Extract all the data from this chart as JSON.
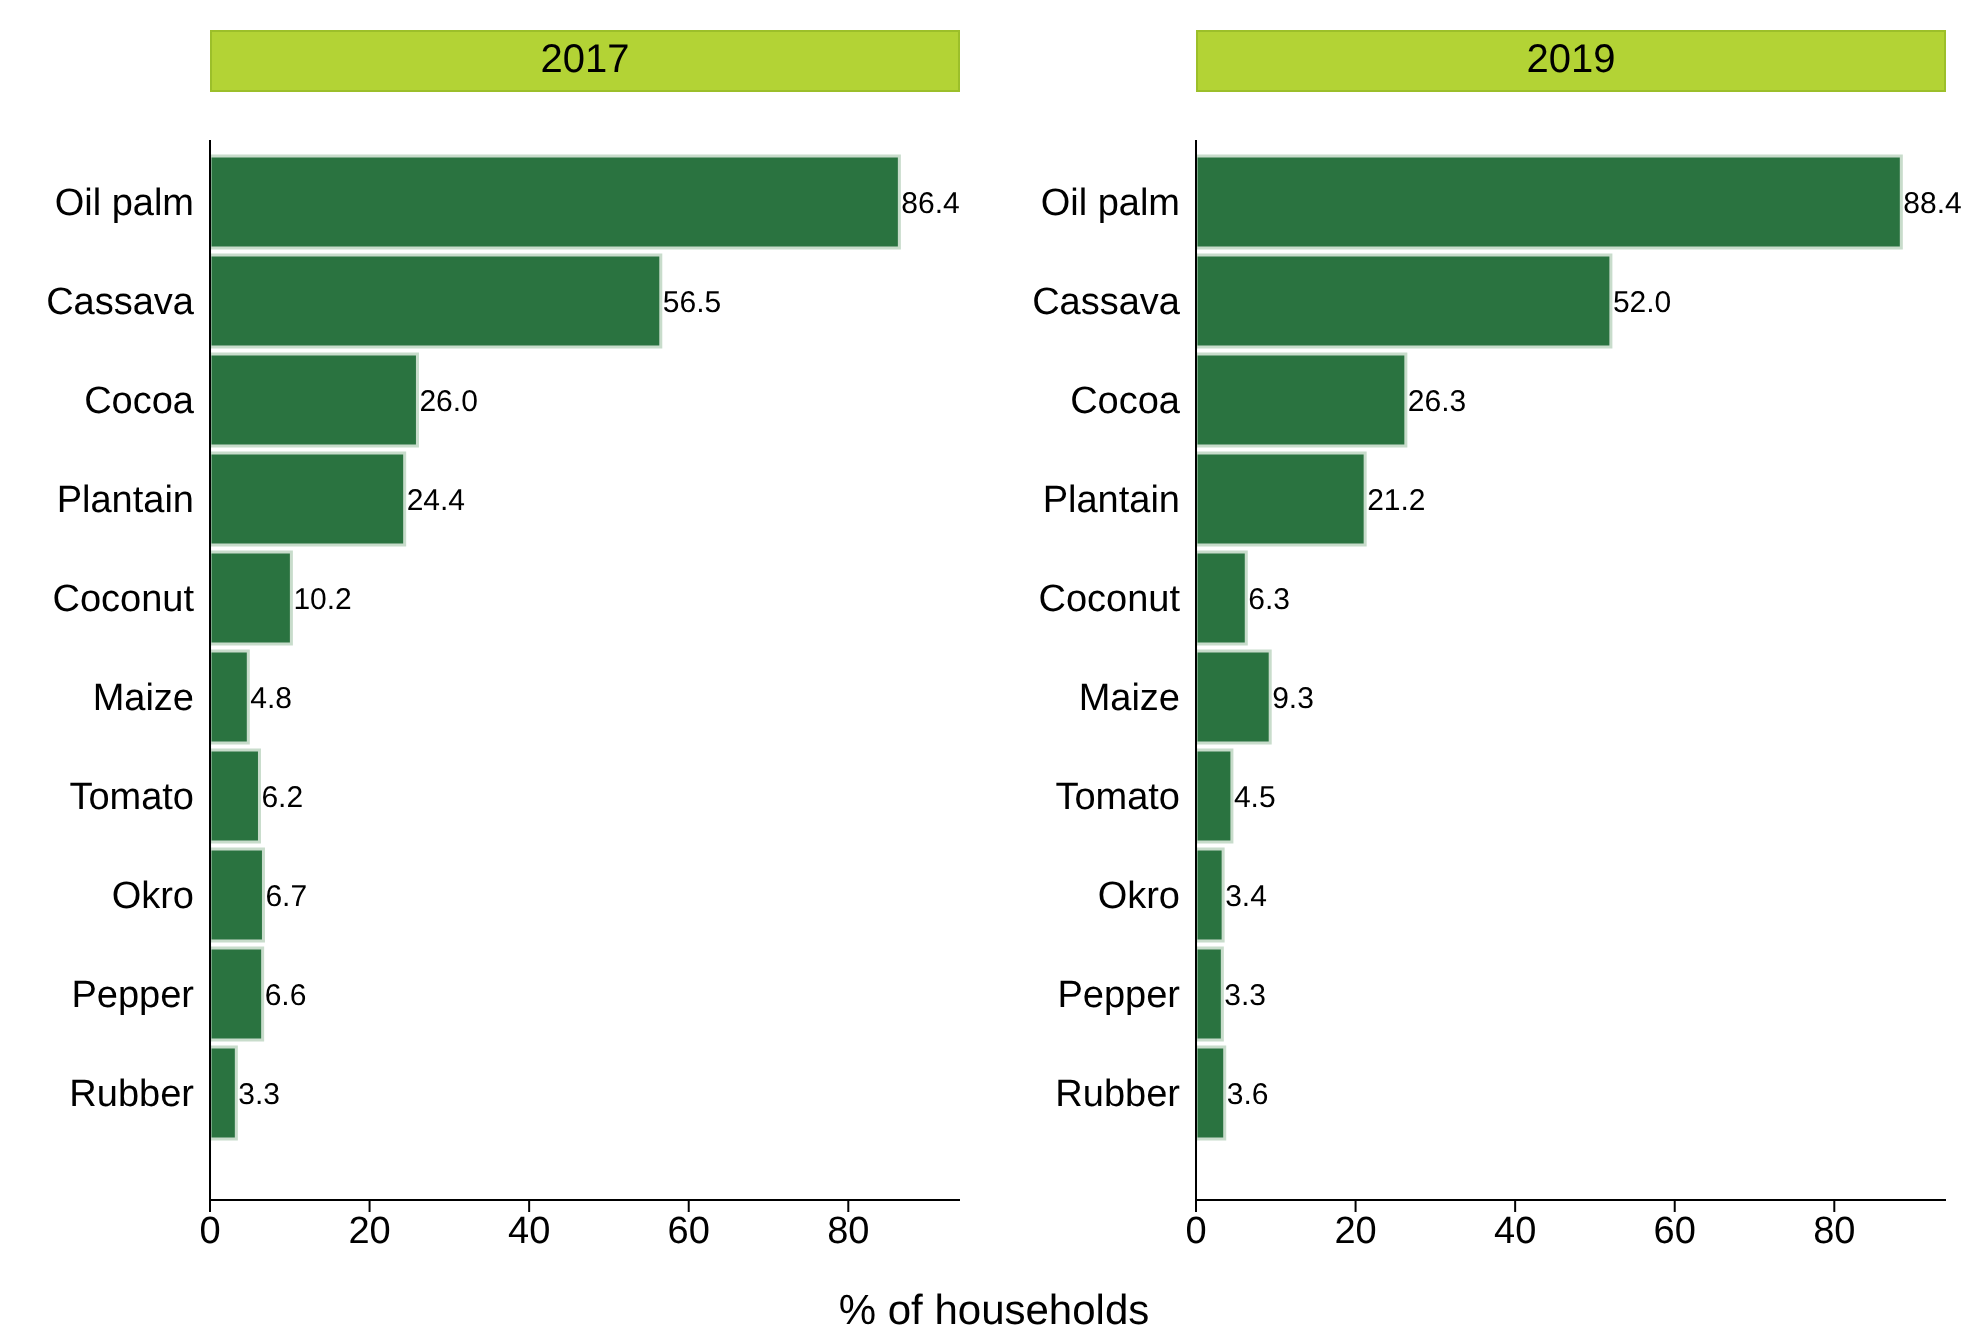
{
  "chart_data": [
    {
      "type": "bar",
      "orientation": "horizontal",
      "title": "2017",
      "xlabel": "% of households",
      "categories": [
        "Oil palm",
        "Cassava",
        "Cocoa",
        "Plantain",
        "Coconut",
        "Maize",
        "Tomato",
        "Okro",
        "Pepper",
        "Rubber"
      ],
      "values": [
        86.4,
        56.5,
        26.0,
        24.4,
        10.2,
        4.8,
        6.2,
        6.7,
        6.6,
        3.3
      ],
      "value_labels": [
        "86.4",
        "56.5",
        "26.0",
        "24.4",
        "10.2",
        "4.8",
        "6.2",
        "6.7",
        "6.6",
        "3.3"
      ],
      "color": "#2a7340",
      "xlim": [
        0,
        94
      ],
      "xticks": [
        0,
        20,
        40,
        60,
        80
      ],
      "grid": false
    },
    {
      "type": "bar",
      "orientation": "horizontal",
      "title": "2019",
      "categories": [
        "Oil palm",
        "Cassava",
        "Cocoa",
        "Plantain",
        "Coconut",
        "Maize",
        "Tomato",
        "Okro",
        "Pepper",
        "Rubber"
      ],
      "values": [
        88.4,
        52.0,
        26.3,
        21.2,
        6.3,
        9.3,
        4.5,
        3.4,
        3.3,
        3.6
      ],
      "value_labels": [
        "88.4",
        "52.0",
        "26.3",
        "21.2",
        "6.3",
        "9.3",
        "4.5",
        "3.4",
        "3.3",
        "3.6"
      ],
      "color": "#2a7340",
      "xlim": [
        0,
        94
      ],
      "xticks": [
        0,
        20,
        40,
        60,
        80
      ],
      "grid": false
    }
  ]
}
